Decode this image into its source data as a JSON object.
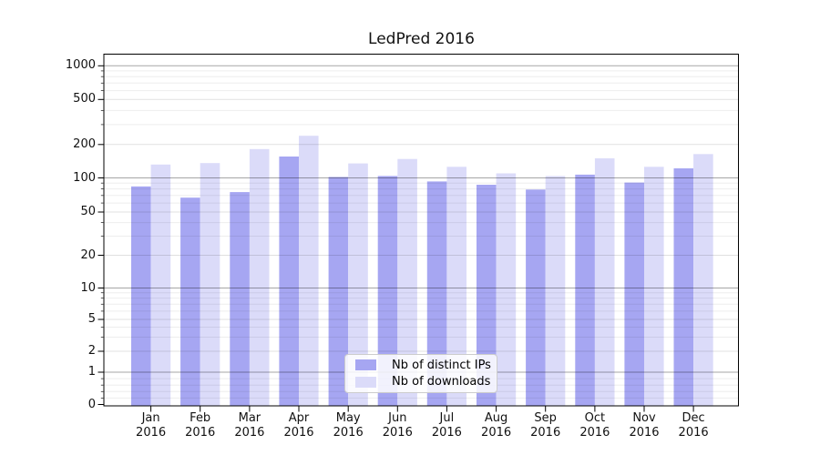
{
  "title": "LedPred 2016",
  "chart_data": {
    "type": "bar",
    "title": "LedPred 2016",
    "categories": [
      "Jan 2016",
      "Feb 2016",
      "Mar 2016",
      "Apr 2016",
      "May 2016",
      "Jun 2016",
      "Jul 2016",
      "Aug 2016",
      "Sep 2016",
      "Oct 2016",
      "Nov 2016",
      "Dec 2016"
    ],
    "series": [
      {
        "name": "Nb of distinct IPs",
        "color": "#a6a6f2",
        "values": [
          84,
          67,
          75,
          156,
          102,
          104,
          93,
          87,
          79,
          107,
          91,
          122
        ]
      },
      {
        "name": "Nb of downloads",
        "color": "#dbdbf9",
        "values": [
          132,
          136,
          182,
          239,
          135,
          148,
          126,
          110,
          104,
          150,
          126,
          164
        ]
      }
    ],
    "xlabel": "",
    "ylabel": "",
    "yscale": "symlog-like",
    "yticks": [
      0,
      1,
      2,
      5,
      10,
      20,
      50,
      100,
      200,
      500,
      1000
    ],
    "ylim": [
      0,
      1200
    ],
    "grid": true,
    "legend_position": "lower center"
  }
}
